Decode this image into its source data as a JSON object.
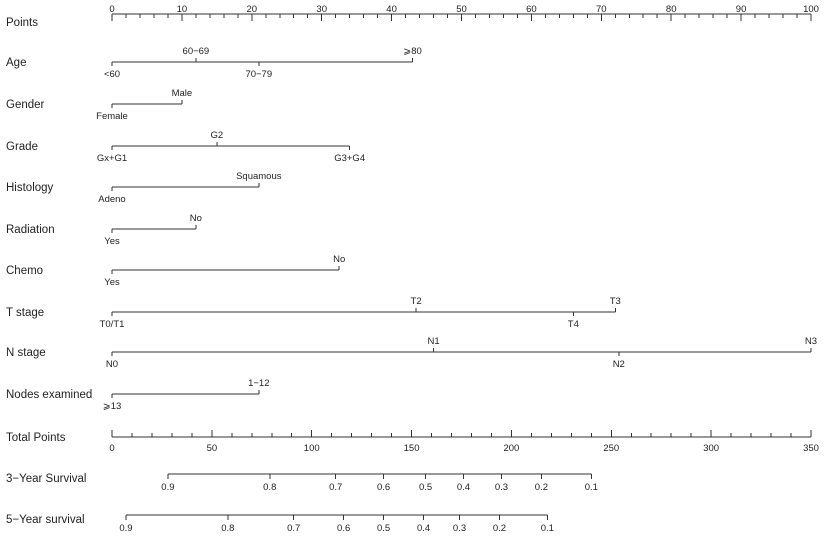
{
  "chart_data": {
    "type": "nomogram",
    "points_axis": {
      "label": "Points",
      "range": [
        0,
        100
      ],
      "major_ticks": [
        0,
        10,
        20,
        30,
        40,
        50,
        60,
        70,
        80,
        90,
        100
      ],
      "minor_step": 2
    },
    "variables": [
      {
        "label": "Age",
        "max_points": 43,
        "levels": [
          {
            "name": "<60",
            "points": 0,
            "pos": "below"
          },
          {
            "name": "60−69",
            "points": 12,
            "pos": "above"
          },
          {
            "name": "70−79",
            "points": 21,
            "pos": "below"
          },
          {
            "name": "⩾80",
            "points": 43,
            "pos": "above"
          }
        ]
      },
      {
        "label": "Gender",
        "max_points": 10,
        "levels": [
          {
            "name": "Female",
            "points": 0,
            "pos": "below"
          },
          {
            "name": "Male",
            "points": 10,
            "pos": "above"
          }
        ]
      },
      {
        "label": "Grade",
        "max_points": 34,
        "levels": [
          {
            "name": "Gx+G1",
            "points": 0,
            "pos": "below"
          },
          {
            "name": "G2",
            "points": 15,
            "pos": "above"
          },
          {
            "name": "G3+G4",
            "points": 34,
            "pos": "below"
          }
        ]
      },
      {
        "label": "Histology",
        "max_points": 21,
        "levels": [
          {
            "name": "Adeno",
            "points": 0,
            "pos": "below"
          },
          {
            "name": "Squamous",
            "points": 21,
            "pos": "above"
          }
        ]
      },
      {
        "label": "Radiation",
        "max_points": 12,
        "levels": [
          {
            "name": "Yes",
            "points": 0,
            "pos": "below"
          },
          {
            "name": "No",
            "points": 12,
            "pos": "above"
          }
        ]
      },
      {
        "label": "Chemo",
        "max_points": 32.5,
        "levels": [
          {
            "name": "Yes",
            "points": 0,
            "pos": "below"
          },
          {
            "name": "No",
            "points": 32.5,
            "pos": "above"
          }
        ]
      },
      {
        "label": "T stage",
        "max_points": 72,
        "levels": [
          {
            "name": "T0/T1",
            "points": 0,
            "pos": "below"
          },
          {
            "name": "T2",
            "points": 43.5,
            "pos": "above"
          },
          {
            "name": "T4",
            "points": 66,
            "pos": "below"
          },
          {
            "name": "T3",
            "points": 72,
            "pos": "above"
          }
        ]
      },
      {
        "label": "N stage",
        "max_points": 100,
        "levels": [
          {
            "name": "N0",
            "points": 0,
            "pos": "below"
          },
          {
            "name": "N1",
            "points": 46,
            "pos": "above"
          },
          {
            "name": "N2",
            "points": 72.5,
            "pos": "below"
          },
          {
            "name": "N3",
            "points": 100,
            "pos": "above"
          }
        ]
      },
      {
        "label": "Nodes examined",
        "max_points": 21,
        "levels": [
          {
            "name": "⩾13",
            "points": 0,
            "pos": "below"
          },
          {
            "name": "1−12",
            "points": 21,
            "pos": "above"
          }
        ]
      }
    ],
    "total_points_axis": {
      "label": "Total Points",
      "range": [
        0,
        350
      ],
      "major_ticks": [
        0,
        50,
        100,
        150,
        200,
        250,
        300,
        350
      ],
      "minor_step": 10
    },
    "survival_axes": [
      {
        "label": "3−Year Survival",
        "ticks": [
          {
            "label": "0.9",
            "total_points": 28
          },
          {
            "label": "0.8",
            "total_points": 79
          },
          {
            "label": "0.7",
            "total_points": 112
          },
          {
            "label": "0.6",
            "total_points": 136
          },
          {
            "label": "0.5",
            "total_points": 157
          },
          {
            "label": "0.4",
            "total_points": 176
          },
          {
            "label": "0.3",
            "total_points": 195
          },
          {
            "label": "0.2",
            "total_points": 215
          },
          {
            "label": "0.1",
            "total_points": 240
          }
        ]
      },
      {
        "label": "5−Year survival",
        "ticks": [
          {
            "label": "0.9",
            "total_points": 7
          },
          {
            "label": "0.8",
            "total_points": 58
          },
          {
            "label": "0.7",
            "total_points": 91
          },
          {
            "label": "0.6",
            "total_points": 116
          },
          {
            "label": "0.5",
            "total_points": 136
          },
          {
            "label": "0.4",
            "total_points": 156
          },
          {
            "label": "0.3",
            "total_points": 174
          },
          {
            "label": "0.2",
            "total_points": 194
          },
          {
            "label": "0.1",
            "total_points": 218
          }
        ]
      }
    ]
  }
}
